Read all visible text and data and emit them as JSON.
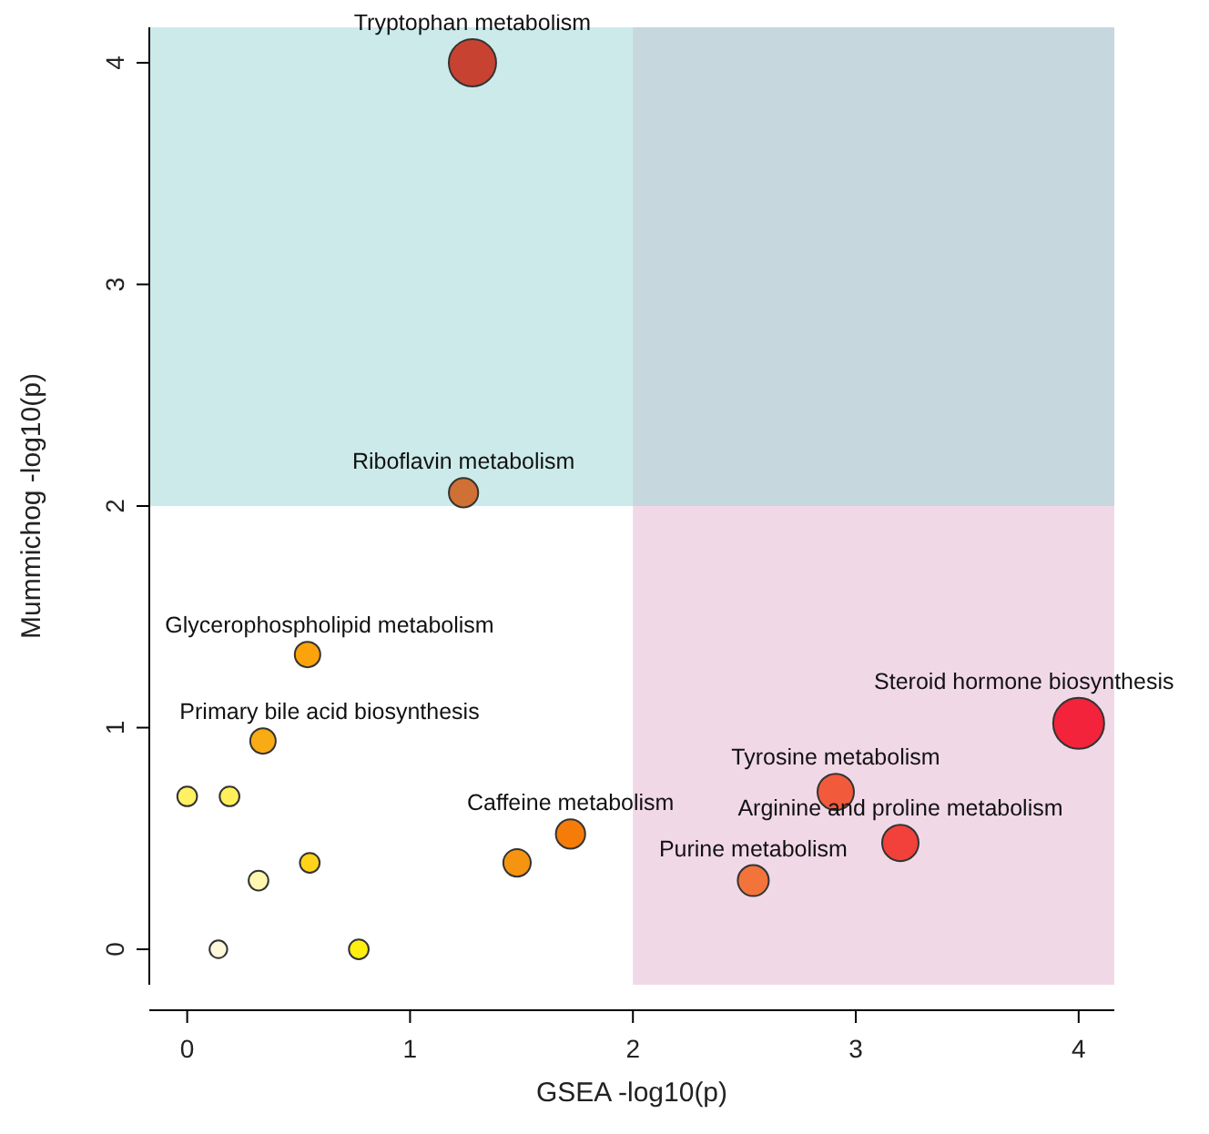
{
  "chart_data": {
    "type": "bubble",
    "xlabel": "GSEA -log10(p)",
    "ylabel": "Mummichog -log10(p)",
    "xlim": [
      -0.17,
      4.16
    ],
    "ylim": [
      -0.16,
      4.16
    ],
    "xticks": [
      0,
      1,
      2,
      3,
      4
    ],
    "yticks": [
      0,
      1,
      2,
      3,
      4
    ],
    "grid": false,
    "marker": "circle",
    "bands": [
      {
        "axis": "y",
        "from": 2,
        "to": 4.16,
        "color": "#9bd5d5"
      },
      {
        "axis": "x",
        "from": 2,
        "to": 4.16,
        "color": "#f1d8e7"
      }
    ],
    "x": [
      1.28,
      1.24,
      0.54,
      0.34,
      0,
      0.19,
      0.55,
      0.32,
      0.14,
      0.77,
      1.48,
      1.72,
      2.54,
      2.91,
      3.2,
      4.0
    ],
    "values": [
      4.0,
      2.06,
      1.33,
      0.94,
      0.69,
      0.69,
      0.39,
      0.31,
      0,
      0,
      0.39,
      0.52,
      0.31,
      0.71,
      0.48,
      1.02
    ],
    "sizes": [
      0.86,
      0.33,
      0.25,
      0.25,
      0.15,
      0.15,
      0.15,
      0.15,
      0.12,
      0.15,
      0.29,
      0.33,
      0.37,
      0.51,
      0.51,
      1
    ],
    "colors": [
      "#c84232",
      "#cf7034",
      "#fca20a",
      "#f8ab12",
      "#fff162",
      "#fff05a",
      "#ffd31a",
      "#fff7b0",
      "#fff8dc",
      "#ffef10",
      "#f49410",
      "#f57c08",
      "#f2743a",
      "#f25a3c",
      "#f2403a",
      "#f2233a"
    ],
    "annotations": [
      {
        "text": "Tryptophan metabolism",
        "x": 1.28,
        "y": 4.0
      },
      {
        "text": "Riboflavin metabolism",
        "x": 1.24,
        "y": 2.06
      },
      {
        "text": "Glycerophospholipid metabolism",
        "x": 0.54,
        "y": 1.33
      },
      {
        "text": "Primary bile acid biosynthesis",
        "x": 0.34,
        "y": 0.94
      },
      {
        "text": "Caffeine metabolism",
        "x": 1.72,
        "y": 0.52
      },
      {
        "text": "Purine metabolism",
        "x": 2.54,
        "y": 0.31
      },
      {
        "text": "Tyrosine metabolism",
        "x": 2.91,
        "y": 0.71
      },
      {
        "text": "Arginine and proline metabolism",
        "x": 3.2,
        "y": 0.48
      },
      {
        "text": "Steroid hormone biosynthesis",
        "x": 4.0,
        "y": 1.02
      }
    ]
  }
}
